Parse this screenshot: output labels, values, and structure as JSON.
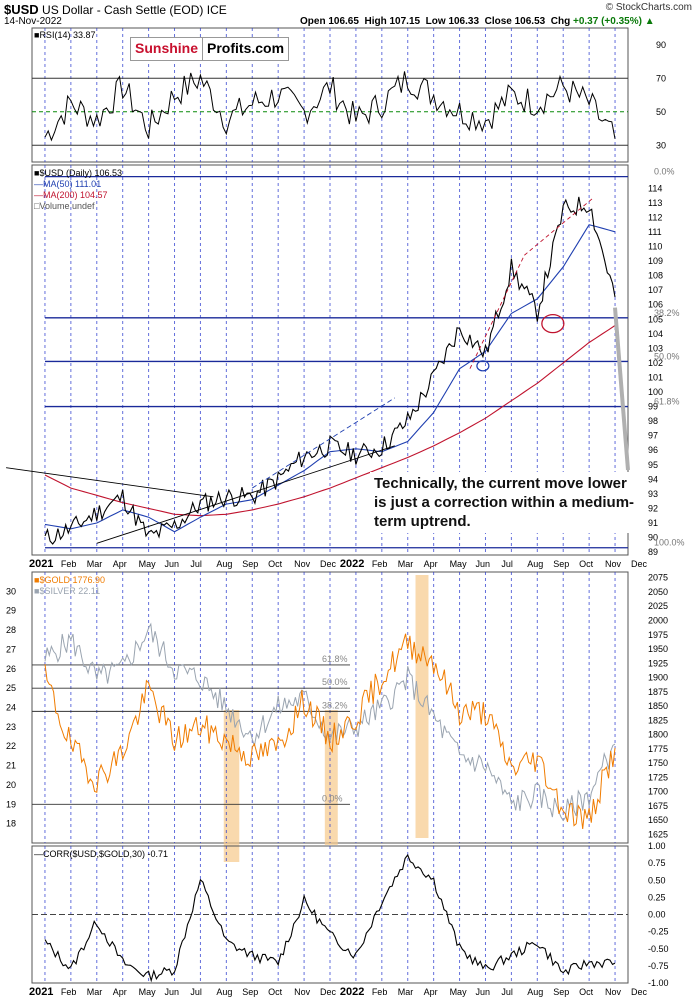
{
  "header": {
    "symbol": "$USD",
    "name": "US Dollar - Cash Settle (EOD) ICE",
    "date": "14-Nov-2022",
    "open_label": "Open",
    "open": "106.65",
    "high_label": "High",
    "high": "107.15",
    "low_label": "Low",
    "low": "106.33",
    "close_label": "Close",
    "close": "106.53",
    "chg_label": "Chg",
    "chg": "+0.37 (+0.35%)",
    "source": "© StockCharts.com"
  },
  "logo": {
    "part1": "Sunshine",
    "part2": "Profits.com"
  },
  "annotation": "Technically, the current move lower is just a correction within a medium-term uptrend.",
  "legends": {
    "rsi": "RSI(14) 33.87",
    "usd": "$USD (Daily) 106.53",
    "ma50": "MA(50) 111.01",
    "ma200": "MA(200) 104.57",
    "volume": "Volume undef",
    "gold": "$GOLD 1776.90",
    "silver": "$SILVER 22.11",
    "corr": "CORR($USD,$GOLD,30) -0.71"
  },
  "colors": {
    "usd": "#000000",
    "ma50": "#1f3fb0",
    "ma200": "#c0132e",
    "gold": "#f07c00",
    "silver": "#9aa4b0",
    "grid": "#2233cc",
    "highlight": "#f7c98a"
  },
  "chart_data": [
    {
      "type": "line",
      "title": "RSI(14)",
      "ylim": [
        20,
        100
      ],
      "yticks": [
        90,
        70,
        50,
        30
      ],
      "reference_lines": [
        70,
        50,
        30
      ],
      "last_value": 33.87
    },
    {
      "type": "line",
      "title": "$USD (Daily)",
      "ylim": [
        88.8,
        115.6
      ],
      "yticks": [
        114,
        113,
        112,
        111,
        110,
        109,
        108,
        107,
        106,
        105,
        104,
        103,
        102,
        101,
        100,
        99,
        98,
        97,
        96,
        95,
        94,
        93,
        92,
        91,
        90,
        89
      ],
      "x_month_labels": [
        "2021",
        "Feb",
        "Mar",
        "Apr",
        "May",
        "Jun",
        "Jul",
        "Aug",
        "Sep",
        "Oct",
        "Nov",
        "Dec",
        "2022",
        "Feb",
        "Mar",
        "Apr",
        "May",
        "Jun",
        "Jul",
        "Aug",
        "Sep",
        "Oct",
        "Nov",
        "Dec"
      ],
      "fib_levels": [
        {
          "label": "0.0%",
          "value": 114.8
        },
        {
          "label": "38.2%",
          "value": 105.1
        },
        {
          "label": "50.0%",
          "value": 102.1
        },
        {
          "label": "61.8%",
          "value": 99.0
        },
        {
          "label": "100.0%",
          "value": 89.3
        }
      ],
      "series": [
        {
          "name": "$USD (Daily)",
          "x": [
            "2021-01",
            "2021-02",
            "2021-03",
            "2021-04",
            "2021-05",
            "2021-06",
            "2021-07",
            "2021-08",
            "2021-09",
            "2021-10",
            "2021-11",
            "2021-12",
            "2022-01",
            "2022-02",
            "2022-03",
            "2022-04",
            "2022-05",
            "2022-06",
            "2022-07",
            "2022-08",
            "2022-09",
            "2022-10",
            "2022-11"
          ],
          "values": [
            89.9,
            90.6,
            91.7,
            92.8,
            90.0,
            90.8,
            92.3,
            92.8,
            92.8,
            94.0,
            95.6,
            96.3,
            95.7,
            96.2,
            98.0,
            101.0,
            104.4,
            102.6,
            108.5,
            105.5,
            112.5,
            113.0,
            106.53
          ]
        },
        {
          "name": "MA(50)",
          "x": [
            "2021-01",
            "2021-02",
            "2021-03",
            "2021-04",
            "2021-05",
            "2021-06",
            "2021-07",
            "2021-08",
            "2021-09",
            "2021-10",
            "2021-11",
            "2021-12",
            "2022-01",
            "2022-02",
            "2022-03",
            "2022-04",
            "2022-05",
            "2022-06",
            "2022-07",
            "2022-08",
            "2022-09",
            "2022-10",
            "2022-11"
          ],
          "values": [
            90.9,
            90.6,
            91.0,
            91.9,
            91.4,
            90.4,
            91.4,
            92.3,
            92.6,
            93.6,
            94.6,
            95.9,
            96.1,
            95.9,
            96.6,
            98.6,
            101.6,
            102.8,
            105.4,
            106.4,
            108.6,
            111.5,
            111.01
          ]
        },
        {
          "name": "MA(200)",
          "x": [
            "2021-01",
            "2021-02",
            "2021-03",
            "2021-04",
            "2021-05",
            "2021-06",
            "2021-07",
            "2021-08",
            "2021-09",
            "2021-10",
            "2021-11",
            "2021-12",
            "2022-01",
            "2022-02",
            "2022-03",
            "2022-04",
            "2022-05",
            "2022-06",
            "2022-07",
            "2022-08",
            "2022-09",
            "2022-10",
            "2022-11"
          ],
          "values": [
            94.3,
            93.4,
            92.9,
            92.4,
            92.0,
            91.6,
            91.5,
            91.6,
            91.9,
            92.3,
            92.8,
            93.4,
            94.1,
            94.8,
            95.5,
            96.3,
            97.2,
            98.2,
            99.4,
            100.6,
            102.0,
            103.4,
            104.57
          ]
        }
      ]
    },
    {
      "type": "line",
      "title": "$GOLD / $SILVER",
      "ylim_left": [
        17,
        31
      ],
      "yticks_left": [
        30,
        29,
        28,
        27,
        26,
        25,
        24,
        23,
        22,
        21,
        20,
        19,
        18
      ],
      "ylim_right": [
        1610,
        2085
      ],
      "yticks_right": [
        2075,
        2050,
        2025,
        2000,
        1975,
        1950,
        1925,
        1900,
        1875,
        1850,
        1825,
        1800,
        1775,
        1750,
        1725,
        1700,
        1675,
        1650,
        1625
      ],
      "fib_levels": [
        {
          "label": "61.8%",
          "value": 26.2
        },
        {
          "label": "50.0%",
          "value": 25.0
        },
        {
          "label": "38.2%",
          "value": 23.8
        },
        {
          "label": "0.0%",
          "value": 19.0
        }
      ],
      "series": [
        {
          "name": "$GOLD",
          "axis": "right",
          "x": [
            "2021-01",
            "2021-02",
            "2021-03",
            "2021-04",
            "2021-05",
            "2021-06",
            "2021-07",
            "2021-08",
            "2021-09",
            "2021-10",
            "2021-11",
            "2021-12",
            "2022-01",
            "2022-02",
            "2022-03",
            "2022-04",
            "2022-05",
            "2022-06",
            "2022-07",
            "2022-08",
            "2022-09",
            "2022-10",
            "2022-11"
          ],
          "values": [
            1900,
            1780,
            1720,
            1770,
            1880,
            1790,
            1815,
            1790,
            1760,
            1780,
            1860,
            1790,
            1830,
            1900,
            1960,
            1930,
            1840,
            1840,
            1740,
            1760,
            1670,
            1650,
            1776.9
          ]
        },
        {
          "name": "$SILVER",
          "axis": "left",
          "x": [
            "2021-01",
            "2021-02",
            "2021-03",
            "2021-04",
            "2021-05",
            "2021-06",
            "2021-07",
            "2021-08",
            "2021-09",
            "2021-10",
            "2021-11",
            "2021-12",
            "2022-01",
            "2022-02",
            "2022-03",
            "2022-04",
            "2022-05",
            "2022-06",
            "2022-07",
            "2022-08",
            "2022-09",
            "2022-10",
            "2022-11"
          ],
          "values": [
            26.5,
            27.5,
            25.5,
            26.0,
            28.0,
            26.0,
            25.5,
            24.0,
            22.5,
            24.0,
            24.5,
            22.5,
            23.0,
            24.0,
            25.5,
            23.5,
            21.5,
            21.0,
            19.0,
            19.5,
            18.5,
            19.5,
            22.11
          ]
        }
      ]
    },
    {
      "type": "line",
      "title": "CORR($USD,$GOLD,30)",
      "ylim": [
        -1.0,
        1.0
      ],
      "yticks": [
        1.0,
        0.75,
        0.5,
        0.25,
        0.0,
        -0.25,
        -0.5,
        -0.75,
        -1.0
      ],
      "series": [
        {
          "name": "CORR($USD,$GOLD,30)",
          "x": [
            "2021-01",
            "2021-02",
            "2021-03",
            "2021-04",
            "2021-05",
            "2021-06",
            "2021-07",
            "2021-08",
            "2021-09",
            "2021-10",
            "2021-11",
            "2021-12",
            "2022-01",
            "2022-02",
            "2022-03",
            "2022-04",
            "2022-05",
            "2022-06",
            "2022-07",
            "2022-08",
            "2022-09",
            "2022-10",
            "2022-11"
          ],
          "values": [
            -0.4,
            -0.8,
            -0.1,
            -0.7,
            -0.9,
            -0.8,
            0.5,
            -0.4,
            -0.6,
            -0.7,
            0.2,
            -0.3,
            -0.6,
            0.2,
            0.85,
            0.5,
            -0.5,
            -0.8,
            -0.6,
            -0.4,
            -0.85,
            -0.7,
            -0.71
          ]
        }
      ]
    }
  ]
}
